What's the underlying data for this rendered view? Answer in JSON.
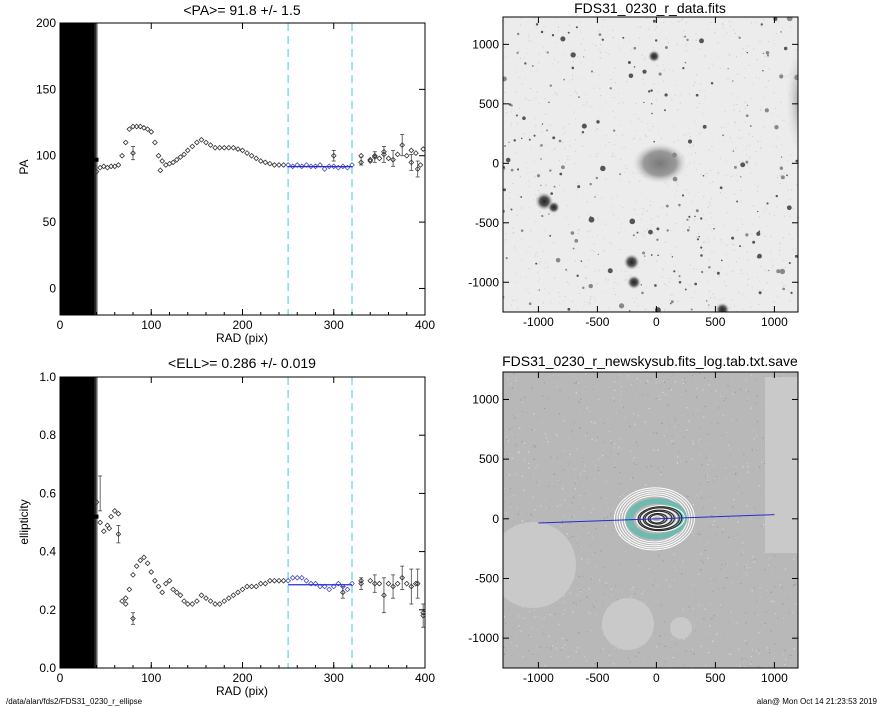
{
  "footer": {
    "path": "/data/alan/fds2/FDS31_0230_r_ellipse",
    "stamp": "alan@  Mon Oct 14 21:23:53 2019"
  },
  "colors": {
    "axis": "#000000",
    "band": "#7fdde8",
    "fit": "#2a2ad0",
    "fit_points": "#4a4ac8",
    "sky_bg": "#b9b9b9",
    "mask": "#c8c8c8",
    "contour_white": "#ffffff",
    "contour_teal": "#6fbab0",
    "contour_dark": "#222222"
  },
  "chart_data": [
    {
      "type": "scatter",
      "title": "<PA>=  91.8 +/-   1.5",
      "xlabel": "RAD (pix)",
      "ylabel": "PA",
      "xlim": [
        0,
        400
      ],
      "ylim": [
        -20,
        200
      ],
      "xticks": [
        0,
        100,
        200,
        300,
        400
      ],
      "yticks": [
        0,
        50,
        100,
        150,
        200
      ],
      "bands": [
        250,
        320
      ],
      "inner_dense_region": {
        "x_range": [
          0,
          40
        ],
        "value": 97
      },
      "points": [
        [
          40,
          88
        ],
        [
          44,
          91
        ],
        [
          48,
          92
        ],
        [
          52,
          91
        ],
        [
          56,
          92
        ],
        [
          60,
          92
        ],
        [
          64,
          93
        ],
        [
          68,
          100
        ],
        [
          72,
          110
        ],
        [
          76,
          120
        ],
        [
          80,
          122
        ],
        [
          84,
          122
        ],
        [
          88,
          122
        ],
        [
          92,
          121
        ],
        [
          96,
          120
        ],
        [
          100,
          118
        ],
        [
          104,
          110
        ],
        [
          108,
          100
        ],
        [
          112,
          96
        ],
        [
          116,
          93
        ],
        [
          120,
          94
        ],
        [
          124,
          95
        ],
        [
          128,
          97
        ],
        [
          132,
          99
        ],
        [
          136,
          101
        ],
        [
          140,
          104
        ],
        [
          145,
          107
        ],
        [
          150,
          110
        ],
        [
          155,
          112
        ],
        [
          160,
          110
        ],
        [
          165,
          108
        ],
        [
          170,
          106
        ],
        [
          175,
          106
        ],
        [
          180,
          106
        ],
        [
          185,
          106
        ],
        [
          190,
          106
        ],
        [
          195,
          105
        ],
        [
          200,
          104
        ],
        [
          205,
          102
        ],
        [
          210,
          100
        ],
        [
          215,
          98
        ],
        [
          220,
          96
        ],
        [
          225,
          95
        ],
        [
          230,
          94
        ],
        [
          235,
          93
        ],
        [
          240,
          93
        ],
        [
          245,
          93
        ],
        [
          250,
          93
        ],
        [
          255,
          92
        ],
        [
          260,
          93
        ],
        [
          265,
          92
        ],
        [
          270,
          93
        ],
        [
          275,
          92
        ],
        [
          280,
          92
        ],
        [
          285,
          93
        ],
        [
          290,
          90
        ],
        [
          295,
          92
        ],
        [
          300,
          92
        ],
        [
          305,
          91
        ],
        [
          310,
          92
        ],
        [
          315,
          91
        ],
        [
          320,
          93
        ],
        [
          330,
          95
        ],
        [
          340,
          97
        ],
        [
          345,
          99
        ],
        [
          350,
          98
        ],
        [
          355,
          101
        ],
        [
          360,
          98
        ],
        [
          370,
          101
        ],
        [
          380,
          100
        ],
        [
          385,
          104
        ],
        [
          390,
          102
        ],
        [
          395,
          93
        ],
        [
          398,
          105
        ]
      ],
      "scattered_points": [
        [
          80,
          102
        ],
        [
          110,
          89
        ],
        [
          300,
          100
        ],
        [
          330,
          100
        ],
        [
          340,
          96
        ],
        [
          345,
          100
        ],
        [
          355,
          103
        ],
        [
          365,
          97
        ],
        [
          375,
          108
        ],
        [
          385,
          95
        ],
        [
          392,
          90
        ]
      ],
      "errorbars": [
        [
          80,
          102,
          5
        ],
        [
          300,
          100,
          4
        ],
        [
          330,
          96,
          3
        ],
        [
          345,
          99,
          4
        ],
        [
          355,
          101,
          6
        ],
        [
          365,
          98,
          6
        ],
        [
          375,
          108,
          8
        ],
        [
          385,
          95,
          6
        ],
        [
          392,
          90,
          6
        ]
      ],
      "fit_points_range": [
        250,
        320
      ],
      "fit_line": {
        "x": [
          250,
          320
        ],
        "y": [
          91.8,
          91.8
        ]
      }
    },
    {
      "type": "scatter",
      "title": "<ELL>= 0.286 +/-  0.019",
      "xlabel": "RAD (pix)",
      "ylabel": "ellipticity",
      "xlim": [
        0,
        400
      ],
      "ylim": [
        0.0,
        1.0
      ],
      "xticks": [
        0,
        100,
        200,
        300,
        400
      ],
      "yticks": [
        0.0,
        0.2,
        0.4,
        0.6,
        0.8,
        1.0
      ],
      "ytick_labels": [
        "0.0",
        "0.2",
        "0.4",
        "0.6",
        "0.8",
        "1.0"
      ],
      "bands": [
        250,
        320
      ],
      "inner_dense_region": {
        "x_range": [
          0,
          40
        ],
        "value": 0.52
      },
      "points": [
        [
          40,
          0.57
        ],
        [
          44,
          0.5
        ],
        [
          48,
          0.47
        ],
        [
          52,
          0.49
        ],
        [
          56,
          0.52
        ],
        [
          60,
          0.54
        ],
        [
          64,
          0.53
        ],
        [
          68,
          0.23
        ],
        [
          72,
          0.22
        ],
        [
          76,
          0.27
        ],
        [
          80,
          0.32
        ],
        [
          84,
          0.35
        ],
        [
          88,
          0.37
        ],
        [
          92,
          0.38
        ],
        [
          96,
          0.36
        ],
        [
          100,
          0.33
        ],
        [
          104,
          0.3
        ],
        [
          108,
          0.28
        ],
        [
          112,
          0.26
        ],
        [
          116,
          0.29
        ],
        [
          120,
          0.3
        ],
        [
          124,
          0.27
        ],
        [
          128,
          0.26
        ],
        [
          132,
          0.25
        ],
        [
          136,
          0.23
        ],
        [
          140,
          0.22
        ],
        [
          145,
          0.22
        ],
        [
          150,
          0.23
        ],
        [
          155,
          0.25
        ],
        [
          160,
          0.24
        ],
        [
          165,
          0.23
        ],
        [
          170,
          0.22
        ],
        [
          175,
          0.22
        ],
        [
          180,
          0.23
        ],
        [
          185,
          0.24
        ],
        [
          190,
          0.25
        ],
        [
          195,
          0.26
        ],
        [
          200,
          0.27
        ],
        [
          205,
          0.28
        ],
        [
          210,
          0.28
        ],
        [
          215,
          0.28
        ],
        [
          220,
          0.29
        ],
        [
          225,
          0.29
        ],
        [
          230,
          0.3
        ],
        [
          235,
          0.3
        ],
        [
          240,
          0.3
        ],
        [
          245,
          0.3
        ],
        [
          250,
          0.3
        ],
        [
          255,
          0.31
        ],
        [
          260,
          0.31
        ],
        [
          265,
          0.31
        ],
        [
          270,
          0.3
        ],
        [
          275,
          0.29
        ],
        [
          280,
          0.29
        ],
        [
          285,
          0.28
        ],
        [
          290,
          0.28
        ],
        [
          295,
          0.27
        ],
        [
          300,
          0.28
        ],
        [
          305,
          0.29
        ],
        [
          310,
          0.28
        ],
        [
          315,
          0.27
        ],
        [
          320,
          0.29
        ],
        [
          330,
          0.3
        ],
        [
          340,
          0.3
        ],
        [
          350,
          0.29
        ],
        [
          360,
          0.29
        ],
        [
          370,
          0.29
        ],
        [
          380,
          0.29
        ],
        [
          390,
          0.29
        ],
        [
          398,
          0.19
        ]
      ],
      "scattered_points": [
        [
          54,
          0.48
        ],
        [
          64,
          0.46
        ],
        [
          72,
          0.24
        ],
        [
          80,
          0.17
        ],
        [
          310,
          0.26
        ],
        [
          330,
          0.29
        ],
        [
          345,
          0.29
        ],
        [
          355,
          0.25
        ],
        [
          365,
          0.28
        ],
        [
          375,
          0.31
        ],
        [
          385,
          0.28
        ],
        [
          392,
          0.29
        ],
        [
          398,
          0.18
        ]
      ],
      "errorbars": [
        [
          44,
          0.6,
          0.06
        ],
        [
          64,
          0.46,
          0.03
        ],
        [
          80,
          0.17,
          0.02
        ],
        [
          310,
          0.26,
          0.02
        ],
        [
          330,
          0.29,
          0.02
        ],
        [
          345,
          0.29,
          0.03
        ],
        [
          355,
          0.25,
          0.06
        ],
        [
          365,
          0.28,
          0.04
        ],
        [
          375,
          0.31,
          0.04
        ],
        [
          385,
          0.28,
          0.06
        ],
        [
          392,
          0.29,
          0.05
        ],
        [
          398,
          0.18,
          0.04
        ]
      ],
      "fit_points_range": [
        250,
        320
      ],
      "fit_line": {
        "x": [
          250,
          320
        ],
        "y": [
          0.286,
          0.286
        ]
      }
    },
    {
      "type": "heatmap",
      "title": "FDS31_0230_r_data.fits",
      "xlim": [
        -1300,
        1200
      ],
      "ylim": [
        -1250,
        1230
      ],
      "xticks": [
        -1000,
        -500,
        0,
        500,
        1000
      ],
      "yticks": [
        -1000,
        -500,
        0,
        500,
        1000
      ],
      "galaxy": {
        "x": 30,
        "y": 0,
        "rx": 230,
        "ry": 170
      }
    },
    {
      "type": "heatmap",
      "title": "FDS31_0230_r_newskysub.fits_log.tab.txt.save",
      "xlim": [
        -1300,
        1200
      ],
      "ylim": [
        -1250,
        1230
      ],
      "xticks": [
        -1000,
        -500,
        0,
        500,
        1000
      ],
      "yticks": [
        -1000,
        -500,
        0,
        500,
        1000
      ],
      "major_axis_line": {
        "x": [
          -1000,
          1000
        ],
        "y": [
          -35,
          35
        ]
      }
    }
  ]
}
